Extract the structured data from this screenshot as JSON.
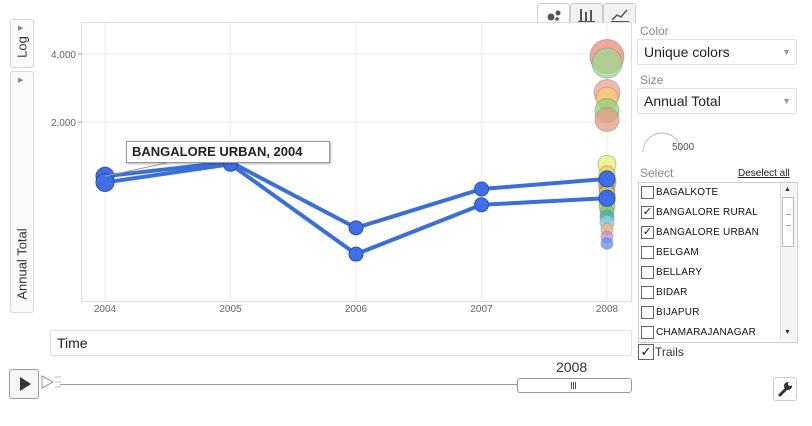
{
  "y_axis": {
    "log_label": "Log",
    "metric_label": "Annual Total"
  },
  "x_axis": {
    "metric_label": "Time"
  },
  "view_tabs": [
    "bubble-chart",
    "bar-chart",
    "line-chart"
  ],
  "color": {
    "label": "Color",
    "value": "Unique colors"
  },
  "size": {
    "label": "Size",
    "value": "Annual Total",
    "legend_value": "5000"
  },
  "select": {
    "label": "Select",
    "deselect_all": "Deselect all",
    "items": [
      {
        "name": "BAGALKOTE",
        "checked": false
      },
      {
        "name": "BANGALORE RURAL",
        "checked": true
      },
      {
        "name": "BANGALORE URBAN",
        "checked": true
      },
      {
        "name": "BELGAM",
        "checked": false
      },
      {
        "name": "BELLARY",
        "checked": false
      },
      {
        "name": "BIDAR",
        "checked": false
      },
      {
        "name": "BIJAPUR",
        "checked": false
      },
      {
        "name": "CHAMARAJANAGAR",
        "checked": false
      }
    ]
  },
  "trails": {
    "label": "Trails",
    "checked": true
  },
  "play": {
    "current_year": "2008"
  },
  "tooltip": "BANGALORE URBAN, 2004",
  "chart_data": {
    "type": "scatter",
    "y_scale": "log",
    "x_ticks": [
      "2004",
      "2005",
      "2006",
      "2007",
      "2008"
    ],
    "y_ticks": [
      "2,000",
      "4,000"
    ],
    "trails": [
      {
        "name": "BANGALORE URBAN",
        "color": "#3a6fd8",
        "points": [
          [
            2004,
            1150
          ],
          [
            2005,
            1330
          ],
          [
            2006,
            680
          ],
          [
            2007,
            1010
          ],
          [
            2008,
            1120
          ]
        ]
      },
      {
        "name": "BANGALORE RURAL",
        "color": "#3a6fd8",
        "points": [
          [
            2004,
            1080
          ],
          [
            2005,
            1300
          ],
          [
            2006,
            520
          ],
          [
            2007,
            860
          ],
          [
            2008,
            920
          ]
        ]
      }
    ],
    "bubbles_2008": [
      {
        "y": 3900,
        "r": 17,
        "color": "#f08a7a"
      },
      {
        "y": 3650,
        "r": 15,
        "color": "#9ad88c"
      },
      {
        "y": 2700,
        "r": 13,
        "color": "#f0a090"
      },
      {
        "y": 2550,
        "r": 11,
        "color": "#f5d070"
      },
      {
        "y": 2250,
        "r": 12,
        "color": "#8fd080"
      },
      {
        "y": 2050,
        "r": 12,
        "color": "#e89a80"
      },
      {
        "y": 1300,
        "r": 9,
        "color": "#e8f070"
      },
      {
        "y": 1180,
        "r": 8,
        "color": "#f0d060"
      },
      {
        "y": 1080,
        "r": 9,
        "color": "#a0a0b0"
      },
      {
        "y": 1000,
        "r": 8,
        "color": "#c08070"
      },
      {
        "y": 960,
        "r": 8,
        "color": "#d8e040"
      },
      {
        "y": 900,
        "r": 8,
        "color": "#70c0e0"
      },
      {
        "y": 850,
        "r": 8,
        "color": "#a0d060"
      },
      {
        "y": 800,
        "r": 7,
        "color": "#80c880"
      },
      {
        "y": 760,
        "r": 7,
        "color": "#40b0a0"
      },
      {
        "y": 720,
        "r": 7,
        "color": "#90d0f0"
      },
      {
        "y": 670,
        "r": 6,
        "color": "#f0b070"
      },
      {
        "y": 620,
        "r": 6,
        "color": "#c090e0"
      },
      {
        "y": 580,
        "r": 6,
        "color": "#6090f0"
      }
    ]
  }
}
